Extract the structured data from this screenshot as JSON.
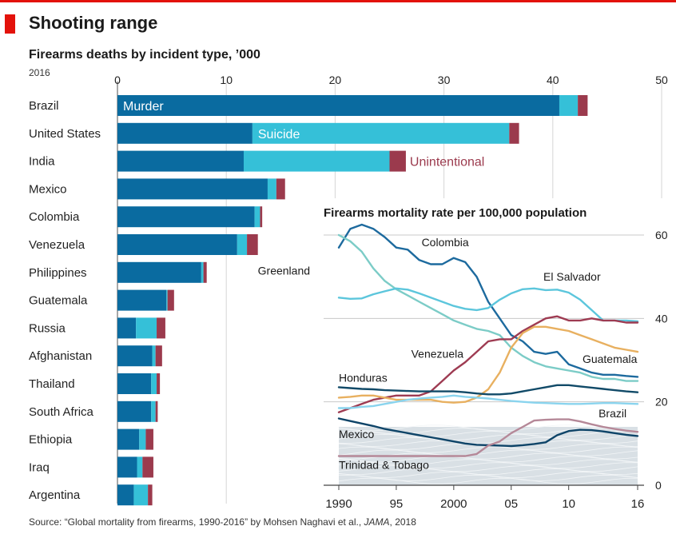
{
  "header": {
    "title": "Shooting range",
    "subtitle": "Firearms deaths by incident type, ’000",
    "year": "2016"
  },
  "source": {
    "prefix": "Source: “Global mortality from firearms, 1990-2016” by Mohsen Naghavi et al., ",
    "journal": "JAMA",
    "suffix": ", 2018"
  },
  "colors": {
    "murder": "#0a6ba0",
    "suicide": "#35c0d8",
    "unintentional": "#9b3a4d",
    "accent": "#e3120b"
  },
  "chart_data": [
    {
      "type": "bar",
      "orientation": "horizontal",
      "stacked": true,
      "title": "Firearms deaths by incident type, ’000",
      "xlim": [
        0,
        50
      ],
      "xticks": [
        0,
        10,
        20,
        30,
        40,
        50
      ],
      "categories": [
        "Brazil",
        "United States",
        "India",
        "Mexico",
        "Colombia",
        "Venezuela",
        "Philippines",
        "Guatemala",
        "Russia",
        "Afghanistan",
        "Thailand",
        "South Africa",
        "Ethiopia",
        "Iraq",
        "Argentina"
      ],
      "series": [
        {
          "name": "Murder",
          "label_row": 0,
          "values": [
            40.6,
            12.4,
            11.6,
            13.8,
            12.6,
            11.0,
            7.7,
            4.5,
            1.7,
            3.2,
            3.1,
            3.1,
            2.0,
            1.8,
            1.5
          ]
        },
        {
          "name": "Suicide",
          "label_row": 1,
          "values": [
            1.7,
            23.6,
            13.4,
            0.8,
            0.5,
            0.9,
            0.2,
            0.1,
            1.9,
            0.3,
            0.5,
            0.4,
            0.6,
            0.5,
            1.3
          ]
        },
        {
          "name": "Unintentional",
          "label_row": 2,
          "values": [
            0.9,
            0.9,
            1.5,
            0.8,
            0.2,
            1.0,
            0.3,
            0.6,
            0.8,
            0.6,
            0.3,
            0.2,
            0.7,
            1.0,
            0.4
          ]
        }
      ]
    },
    {
      "type": "line",
      "title": "Firearms mortality rate per 100,000 population",
      "x": [
        1990,
        1991,
        1992,
        1993,
        1994,
        1995,
        1996,
        1997,
        1998,
        1999,
        2000,
        2001,
        2002,
        2003,
        2004,
        2005,
        2006,
        2007,
        2008,
        2009,
        2010,
        2011,
        2012,
        2013,
        2014,
        2015,
        2016
      ],
      "xlim": [
        1990,
        2016
      ],
      "ylim": [
        0,
        65
      ],
      "xticks": [
        1990,
        1995,
        2000,
        2005,
        2010,
        2016
      ],
      "xtick_labels": [
        "1990",
        "95",
        "2000",
        "05",
        "10",
        "16"
      ],
      "yticks": [
        0,
        20,
        40,
        60
      ],
      "series": [
        {
          "name": "Colombia",
          "color": "#1d6a9e",
          "values": [
            57.0,
            61.5,
            62.5,
            61.5,
            59.5,
            57.0,
            56.5,
            54.0,
            53.0,
            53.0,
            54.5,
            53.5,
            50.0,
            44.0,
            40.0,
            36.0,
            34.5,
            32.0,
            31.5,
            32.0,
            29.0,
            28.0,
            27.0,
            26.5,
            26.5,
            26.2,
            26.0
          ]
        },
        {
          "name": "Greenland",
          "color": "#7cccc7",
          "values": [
            60.0,
            58.5,
            56.0,
            52.0,
            49.0,
            47.0,
            45.5,
            44.0,
            42.5,
            41.0,
            39.5,
            38.5,
            37.5,
            37.0,
            36.0,
            33.0,
            31.0,
            29.5,
            28.5,
            28.0,
            27.5,
            27.0,
            26.0,
            25.5,
            25.5,
            25.0,
            25.0
          ]
        },
        {
          "name": "El Salvador",
          "color": "#5cc6dc",
          "values": [
            45.0,
            44.7,
            44.8,
            45.8,
            46.5,
            47.2,
            46.9,
            46.0,
            45.0,
            44.0,
            43.0,
            42.3,
            42.0,
            42.5,
            44.5,
            46.0,
            47.0,
            47.2,
            46.8,
            46.9,
            46.2,
            44.5,
            42.0,
            39.5,
            39.5,
            39.5,
            39.3
          ]
        },
        {
          "name": "Venezuela",
          "color": "#9e3b52",
          "values": [
            17.5,
            18.5,
            19.5,
            20.5,
            21.0,
            21.5,
            21.5,
            21.5,
            22.5,
            25.0,
            27.5,
            29.5,
            32.0,
            34.5,
            35.0,
            35.0,
            37.0,
            38.5,
            40.0,
            40.5,
            39.5,
            39.5,
            40.0,
            39.5,
            39.5,
            39.0,
            39.0
          ]
        },
        {
          "name": "Guatemala",
          "color": "#e8b060",
          "values": [
            21.0,
            21.2,
            21.5,
            21.5,
            21.0,
            20.5,
            20.5,
            20.5,
            20.5,
            20.0,
            19.8,
            20.0,
            21.0,
            23.0,
            27.0,
            33.0,
            36.5,
            38.0,
            38.0,
            37.5,
            37.0,
            36.0,
            35.0,
            34.0,
            33.0,
            32.5,
            32.0
          ]
        },
        {
          "name": "Honduras",
          "color": "#114a68",
          "values": [
            23.5,
            23.3,
            23.1,
            23.0,
            22.8,
            22.7,
            22.6,
            22.5,
            22.5,
            22.5,
            22.5,
            22.3,
            22.0,
            21.8,
            21.8,
            22.0,
            22.5,
            23.0,
            23.5,
            24.0,
            24.0,
            23.7,
            23.4,
            23.1,
            22.8,
            22.5,
            22.3
          ]
        },
        {
          "name": "Brazil",
          "color": "#8ad4ee",
          "values": [
            18.5,
            18.5,
            18.8,
            19.0,
            19.5,
            20.0,
            20.5,
            20.8,
            21.0,
            21.2,
            21.5,
            21.2,
            21.0,
            20.8,
            20.5,
            20.2,
            20.0,
            19.8,
            19.7,
            19.6,
            19.5,
            19.5,
            19.6,
            19.7,
            19.7,
            19.6,
            19.5
          ]
        },
        {
          "name": "Mexico",
          "color": "#0e4468",
          "values": [
            16.0,
            15.4,
            14.8,
            14.2,
            13.5,
            13.0,
            12.5,
            12.0,
            11.5,
            11.0,
            10.5,
            10.0,
            9.7,
            9.6,
            9.5,
            9.4,
            9.6,
            9.9,
            10.3,
            12.0,
            13.0,
            13.3,
            13.2,
            12.9,
            12.5,
            12.1,
            11.8
          ]
        },
        {
          "name": "Trinidad & Tobago",
          "color": "#b58898",
          "values": [
            7.0,
            7.0,
            7.0,
            7.0,
            7.0,
            7.0,
            7.0,
            7.0,
            7.0,
            7.0,
            7.0,
            7.0,
            7.5,
            9.5,
            10.5,
            12.5,
            14.0,
            15.5,
            15.7,
            15.8,
            15.8,
            15.3,
            14.6,
            14.0,
            13.5,
            13.1,
            12.8
          ]
        }
      ],
      "background_band_max": 14
    }
  ]
}
